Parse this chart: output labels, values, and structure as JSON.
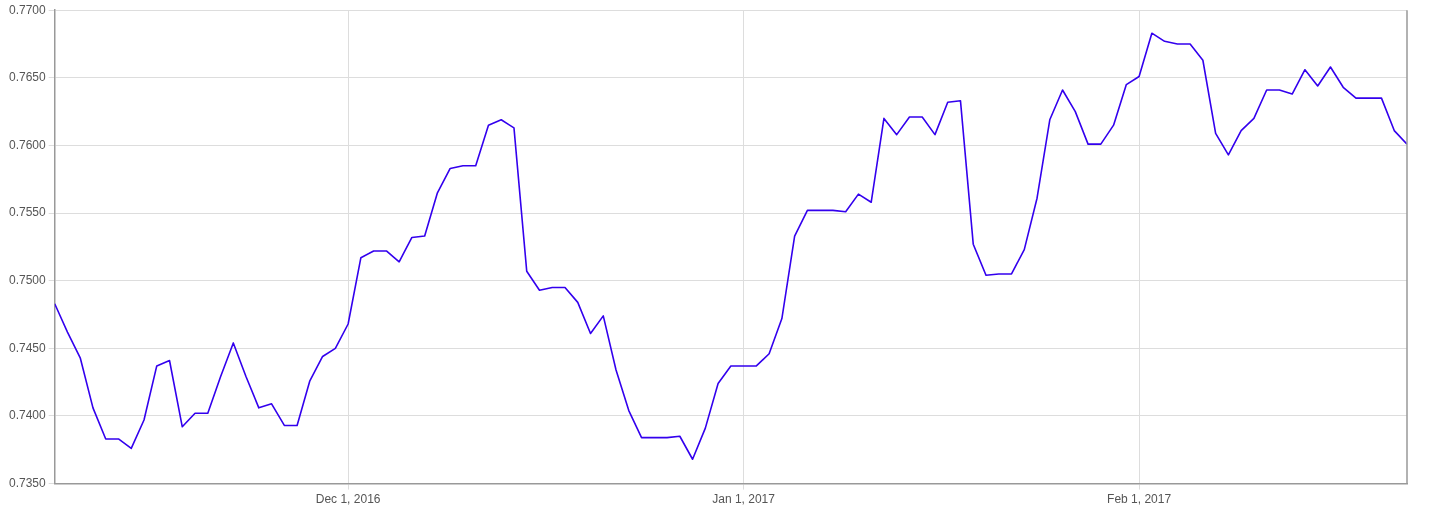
{
  "chart_data": {
    "type": "line",
    "x": [
      "2016-11-08",
      "2016-11-09",
      "2016-11-10",
      "2016-11-11",
      "2016-11-12",
      "2016-11-13",
      "2016-11-14",
      "2016-11-15",
      "2016-11-16",
      "2016-11-17",
      "2016-11-18",
      "2016-11-19",
      "2016-11-20",
      "2016-11-21",
      "2016-11-22",
      "2016-11-23",
      "2016-11-24",
      "2016-11-25",
      "2016-11-26",
      "2016-11-27",
      "2016-11-28",
      "2016-11-29",
      "2016-11-30",
      "2016-12-01",
      "2016-12-02",
      "2016-12-03",
      "2016-12-04",
      "2016-12-05",
      "2016-12-06",
      "2016-12-07",
      "2016-12-08",
      "2016-12-09",
      "2016-12-10",
      "2016-12-11",
      "2016-12-12",
      "2016-12-13",
      "2016-12-14",
      "2016-12-15",
      "2016-12-16",
      "2016-12-17",
      "2016-12-18",
      "2016-12-19",
      "2016-12-20",
      "2016-12-21",
      "2016-12-22",
      "2016-12-23",
      "2016-12-24",
      "2016-12-25",
      "2016-12-26",
      "2016-12-27",
      "2016-12-28",
      "2016-12-29",
      "2016-12-30",
      "2016-12-31",
      "2017-01-01",
      "2017-01-02",
      "2017-01-03",
      "2017-01-04",
      "2017-01-05",
      "2017-01-06",
      "2017-01-07",
      "2017-01-08",
      "2017-01-09",
      "2017-01-10",
      "2017-01-11",
      "2017-01-12",
      "2017-01-13",
      "2017-01-14",
      "2017-01-15",
      "2017-01-16",
      "2017-01-17",
      "2017-01-18",
      "2017-01-19",
      "2017-01-20",
      "2017-01-21",
      "2017-01-22",
      "2017-01-23",
      "2017-01-24",
      "2017-01-25",
      "2017-01-26",
      "2017-01-27",
      "2017-01-28",
      "2017-01-29",
      "2017-01-30",
      "2017-01-31",
      "2017-02-01",
      "2017-02-02",
      "2017-02-03",
      "2017-02-04",
      "2017-02-05",
      "2017-02-06",
      "2017-02-07",
      "2017-02-08",
      "2017-02-09",
      "2017-02-10",
      "2017-02-11",
      "2017-02-12",
      "2017-02-13",
      "2017-02-14",
      "2017-02-15",
      "2017-02-16",
      "2017-02-17",
      "2017-02-18",
      "2017-02-19",
      "2017-02-20",
      "2017-02-21",
      "2017-02-22"
    ],
    "series": [
      {
        "color": "#3300ee",
        "values": [
          0.7483,
          0.7462,
          0.7443,
          0.7406,
          0.7383,
          0.7383,
          0.7376,
          0.7397,
          0.7437,
          0.7441,
          0.7392,
          0.7402,
          0.7402,
          0.7429,
          0.7454,
          0.7429,
          0.7406,
          0.7409,
          0.7393,
          0.7393,
          0.7426,
          0.7444,
          0.745,
          0.7468,
          0.7517,
          0.7522,
          0.7522,
          0.7514,
          0.7532,
          0.7533,
          0.7565,
          0.7583,
          0.7585,
          0.7585,
          0.7615,
          0.7619,
          0.7613,
          0.7507,
          0.7493,
          0.7495,
          0.7495,
          0.7484,
          0.7461,
          0.7474,
          0.7434,
          0.7404,
          0.7384,
          0.7384,
          0.7384,
          0.7385,
          0.7368,
          0.7391,
          0.7424,
          0.7437,
          0.7437,
          0.7437,
          0.7446,
          0.7472,
          0.7533,
          0.7552,
          0.7552,
          0.7552,
          0.7551,
          0.7564,
          0.7558,
          0.762,
          0.7608,
          0.7621,
          0.7621,
          0.7608,
          0.7632,
          0.7633,
          0.7527,
          0.7504,
          0.7505,
          0.7505,
          0.7523,
          0.7561,
          0.7619,
          0.7641,
          0.7625,
          0.7601,
          0.7601,
          0.7615,
          0.7645,
          0.7651,
          0.7683,
          0.7677,
          0.7675,
          0.7675,
          0.7663,
          0.7609,
          0.7593,
          0.7611,
          0.762,
          0.7641,
          0.7641,
          0.7638,
          0.7656,
          0.7644,
          0.7658,
          0.7643,
          0.7635,
          0.7635,
          0.7635,
          0.7611,
          0.7601
        ]
      }
    ],
    "xlim": [
      "2016-11-08",
      "2017-02-22"
    ],
    "xticks": [
      {
        "value": "2016-12-01",
        "label": "Dec 1, 2016"
      },
      {
        "value": "2017-01-01",
        "label": "Jan 1, 2017"
      },
      {
        "value": "2017-02-01",
        "label": "Feb 1, 2017"
      }
    ],
    "ylim": [
      0.735,
      0.77
    ],
    "yticks": [
      {
        "value": 0.735,
        "label": "0.7350"
      },
      {
        "value": 0.74,
        "label": "0.7400"
      },
      {
        "value": 0.745,
        "label": "0.7450"
      },
      {
        "value": 0.75,
        "label": "0.7500"
      },
      {
        "value": 0.755,
        "label": "0.7550"
      },
      {
        "value": 0.76,
        "label": "0.7600"
      },
      {
        "value": 0.765,
        "label": "0.7650"
      },
      {
        "value": 0.77,
        "label": "0.7700"
      }
    ],
    "grid": true,
    "marker": "none"
  }
}
